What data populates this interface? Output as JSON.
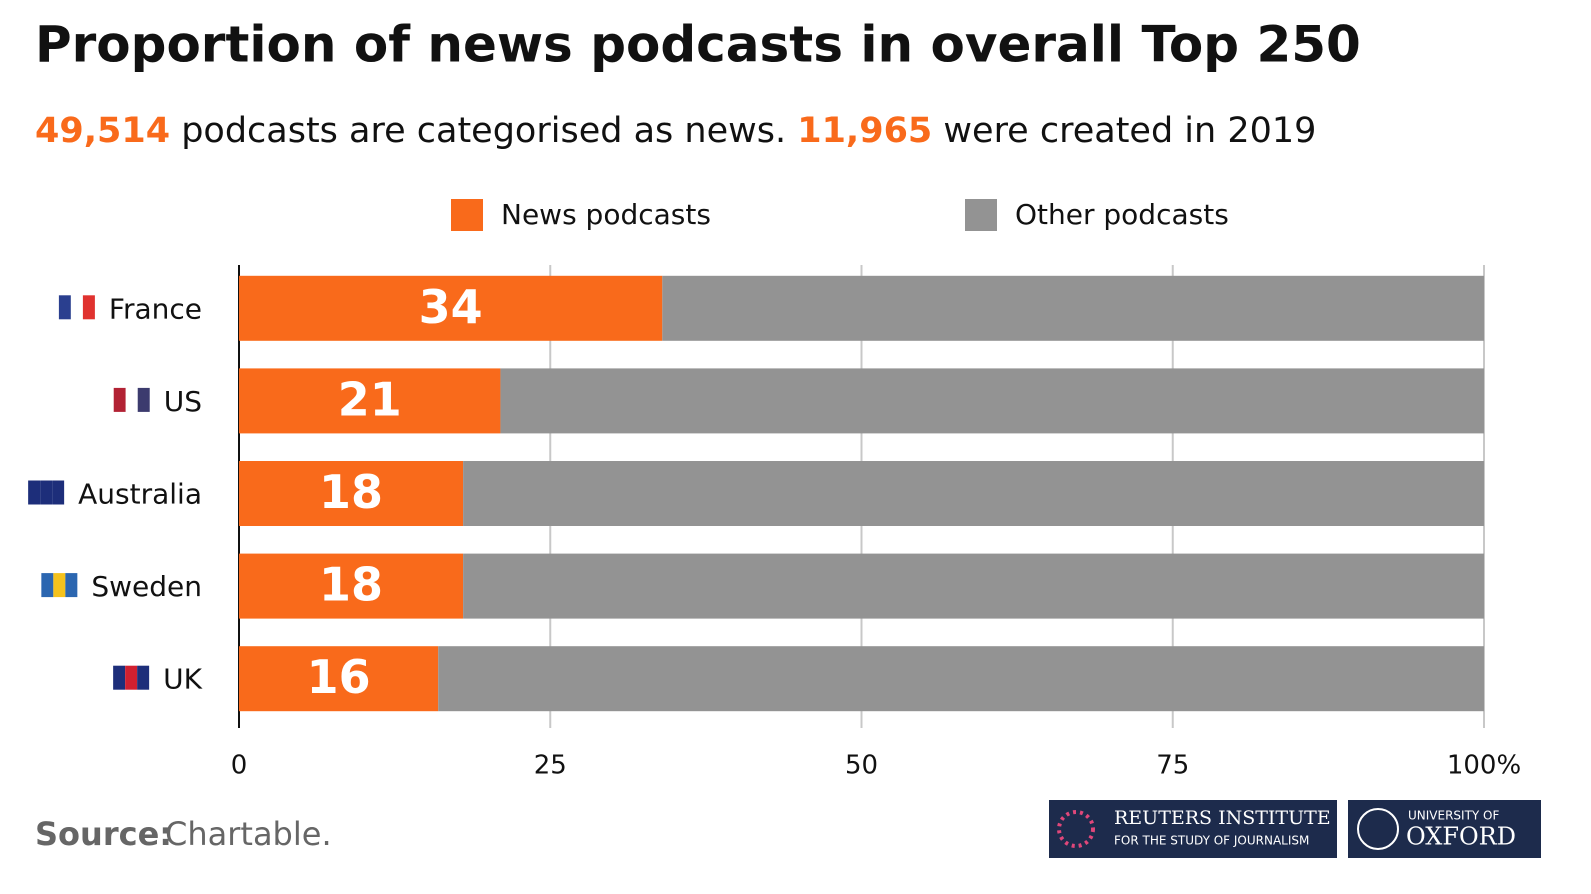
{
  "chart_data": {
    "type": "stacked-bar-horizontal",
    "title": "Proportion of news podcasts in overall Top 250",
    "subtitle_parts": [
      {
        "text": "49,514",
        "color": "#f96a1b"
      },
      {
        "text": " podcasts are categorised as news. ",
        "color": "#111111"
      },
      {
        "text": "11,965",
        "color": "#f96a1b"
      },
      {
        "text": " were created in 2019",
        "color": "#111111"
      }
    ],
    "categories": [
      "France",
      "US",
      "Australia",
      "Sweden",
      "UK"
    ],
    "series": [
      {
        "name": "News podcasts",
        "color": "#f96a1b",
        "values": [
          34,
          21,
          18,
          18,
          16
        ]
      },
      {
        "name": "Other podcasts",
        "color": "#939393",
        "values": [
          66,
          79,
          82,
          82,
          84
        ]
      }
    ],
    "xlim": [
      0,
      100
    ],
    "xticks": [
      0,
      25,
      50,
      75,
      {
        "value": 100,
        "label": "100%"
      }
    ],
    "grid": true,
    "source_label": "Source:",
    "source": "Chartable.",
    "logos": [
      "REUTERS INSTITUTE",
      "FOR THE STUDY OF JOURNALISM",
      "UNIVERSITY OF",
      "OXFORD"
    ]
  }
}
